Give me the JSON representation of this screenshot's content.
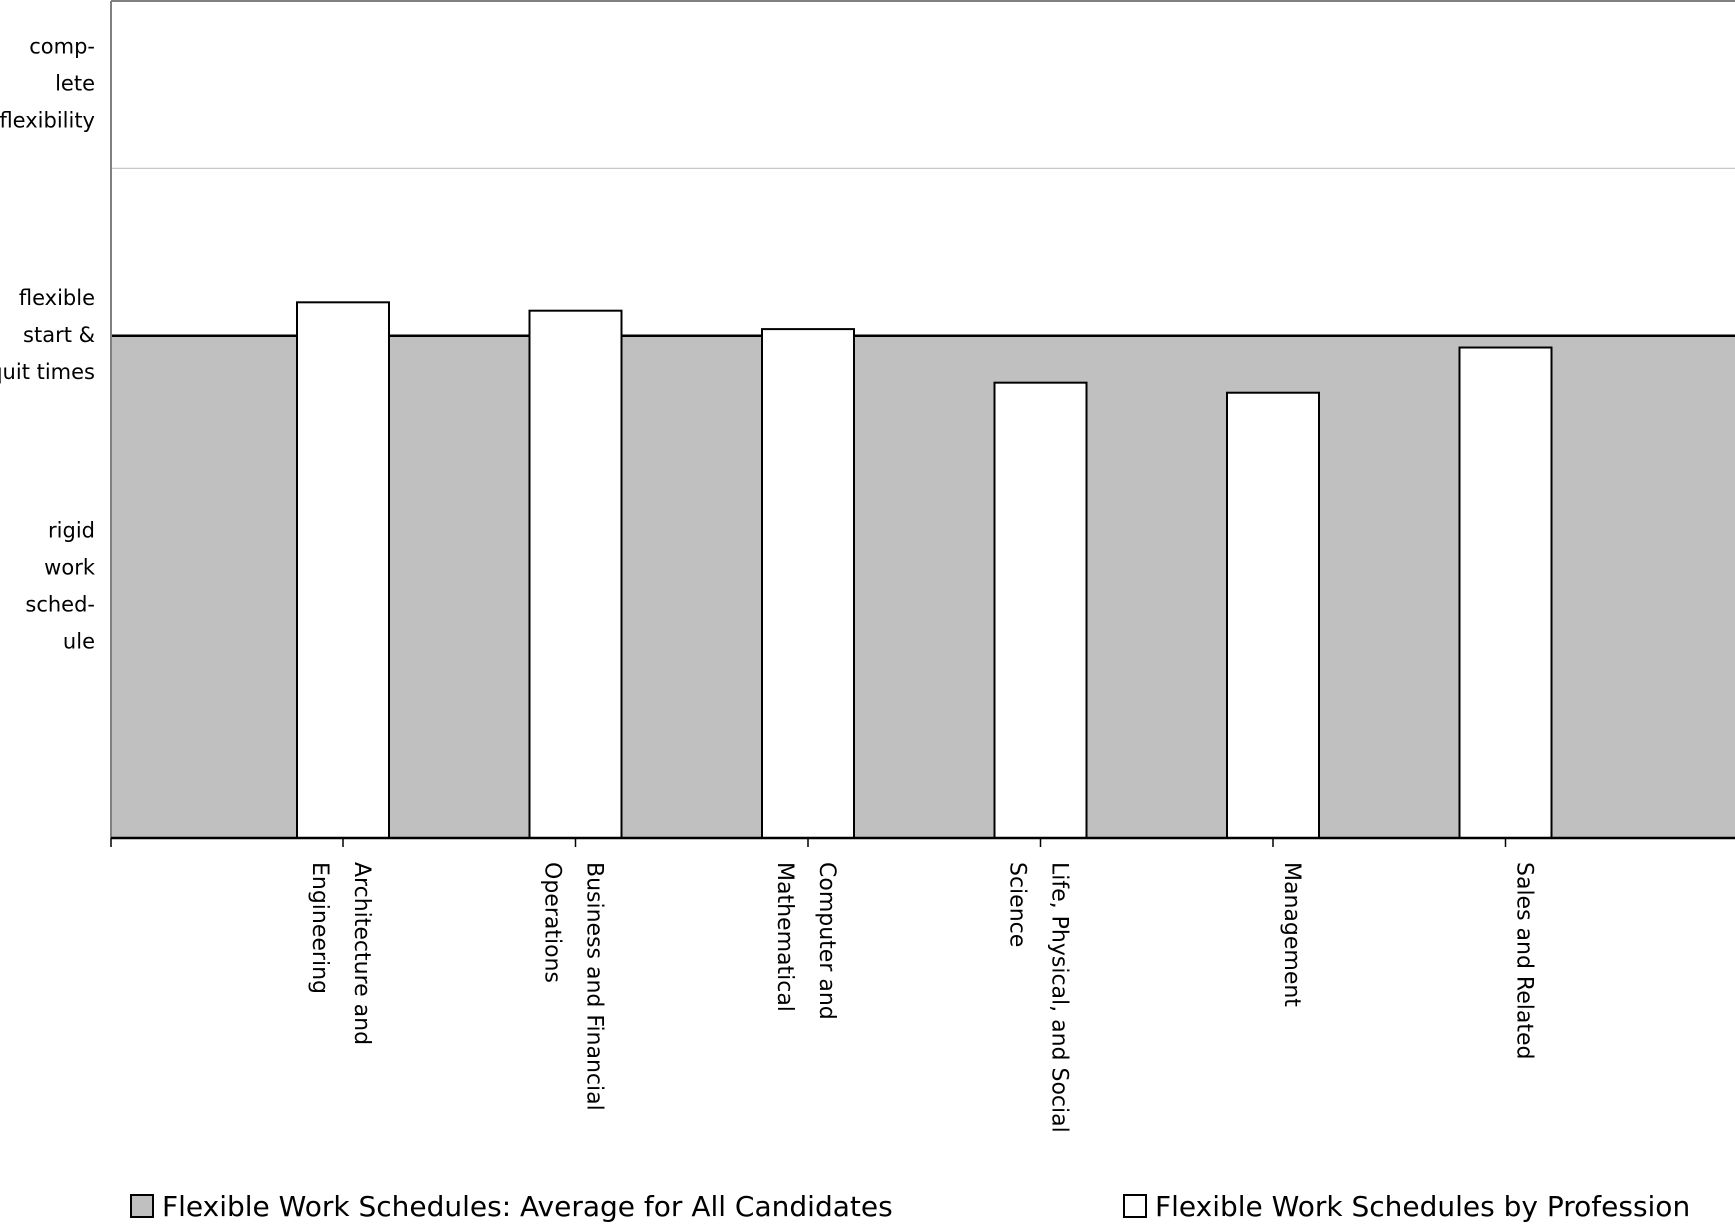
{
  "chart_data": {
    "type": "bar",
    "categories": [
      [
        "Architecture and",
        "Engineering"
      ],
      [
        "Business and Financial",
        "Operations"
      ],
      [
        "Computer and",
        "Mathematical"
      ],
      [
        "Life, Physical, and Social",
        "Science"
      ],
      [
        "Management"
      ],
      [
        "Sales and Related"
      ]
    ],
    "series": [
      {
        "name": "Flexible Work Schedules by Profession",
        "values": [
          2.2,
          2.15,
          2.04,
          1.72,
          1.66,
          1.93
        ],
        "color": "#ffffff"
      }
    ],
    "reference": {
      "name": "Flexible Work Schedules: Average for All Candidates",
      "value": 2.0,
      "color": "#c0c0c0"
    },
    "ylim": [
      -1,
      4
    ],
    "y_ticks": [
      {
        "value": 3.5,
        "label": [
          "comp-",
          "lete",
          "flexibility"
        ]
      },
      {
        "value": 2.0,
        "label": [
          "flexible",
          "start &",
          "quit times"
        ]
      },
      {
        "value": 0.5,
        "label": [
          "rigid",
          "work",
          "sched-",
          "ule"
        ]
      }
    ],
    "gridlines": [
      4,
      3
    ],
    "legend": {
      "position": "bottom",
      "items": [
        {
          "label": "Flexible Work Schedules: Average for All Candidates",
          "color": "#c0c0c0"
        },
        {
          "label": "Flexible Work Schedules by Profession",
          "color": "#ffffff"
        }
      ]
    }
  }
}
